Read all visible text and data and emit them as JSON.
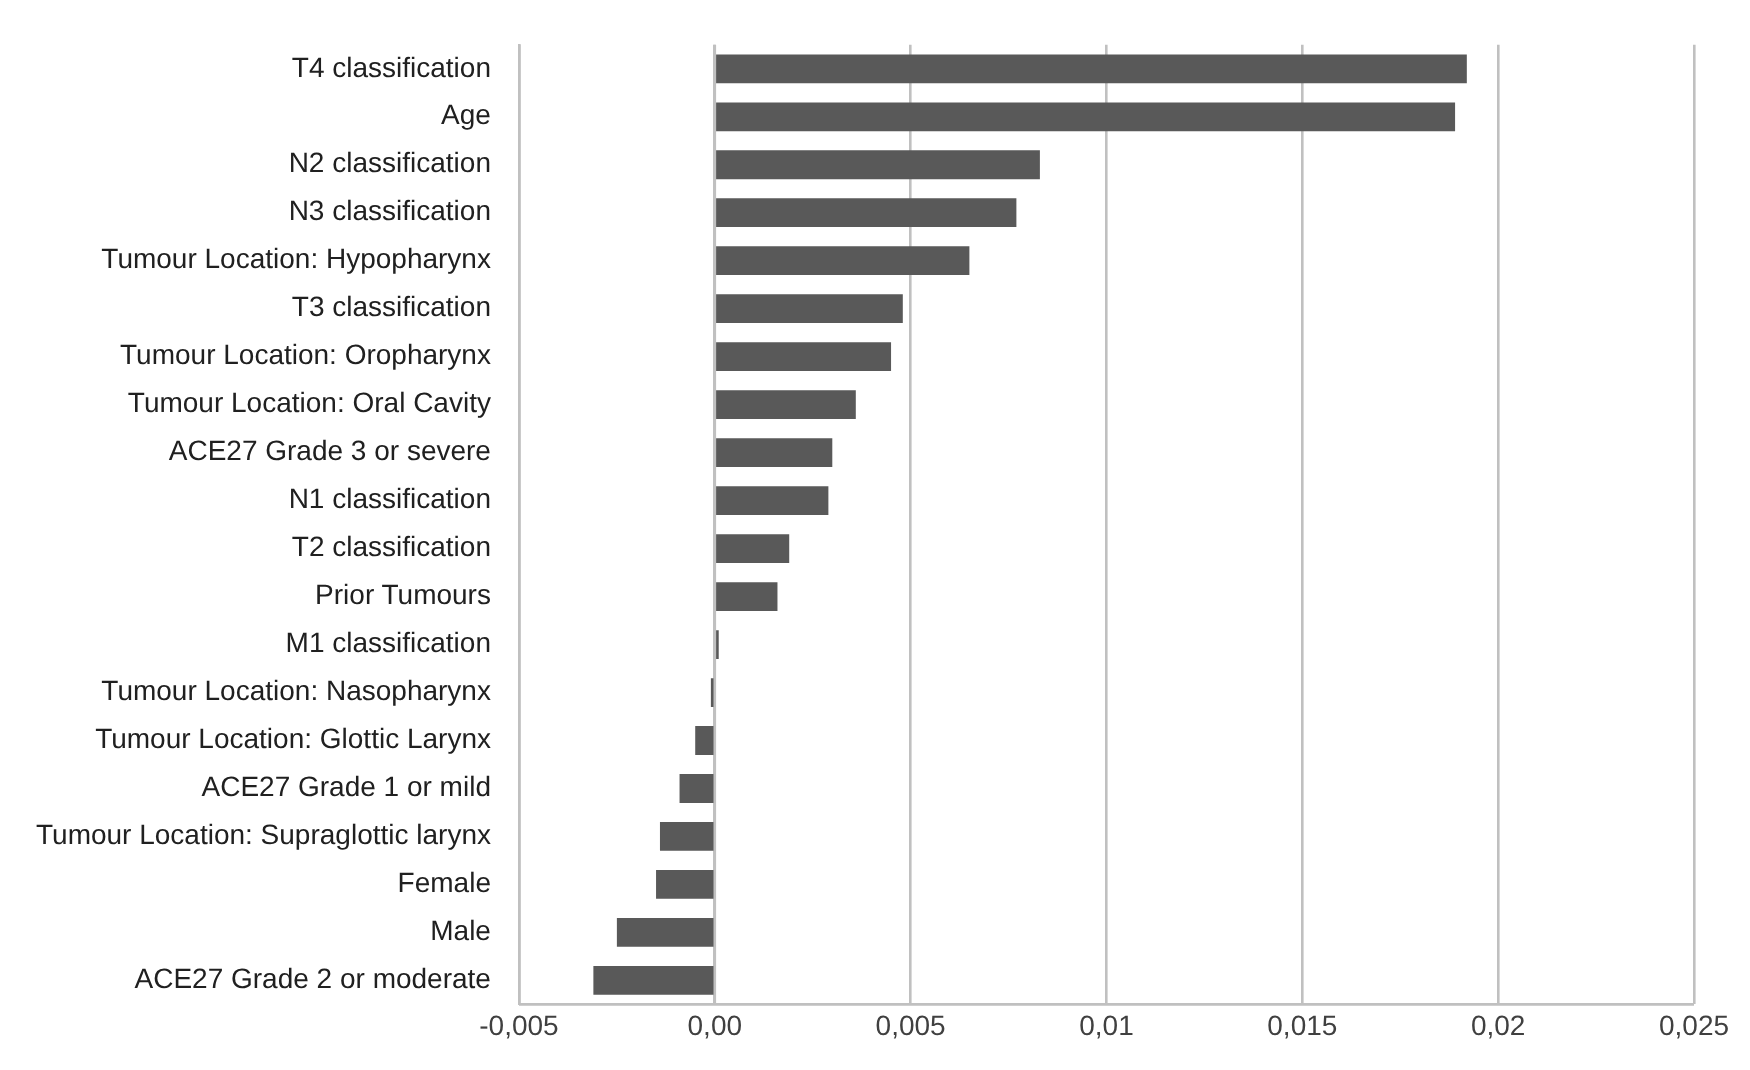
{
  "chart_data": {
    "type": "bar",
    "orientation": "horizontal",
    "categories": [
      "T4 classification",
      "Age",
      "N2 classification",
      "N3 classification",
      "Tumour Location: Hypopharynx",
      "T3 classification",
      "Tumour Location: Oropharynx",
      "Tumour Location: Oral Cavity",
      "ACE27 Grade 3 or severe",
      "N1 classification",
      "T2 classification",
      "Prior Tumours",
      "M1 classification",
      "Tumour Location: Nasopharynx",
      "Tumour Location: Glottic Larynx",
      "ACE27 Grade 1 or mild",
      "Tumour Location: Supraglottic larynx",
      "Female",
      "Male",
      "ACE27 Grade 2 or moderate"
    ],
    "values": [
      0.0192,
      0.0189,
      0.0083,
      0.0077,
      0.0065,
      0.0048,
      0.0045,
      0.0036,
      0.003,
      0.0029,
      0.0019,
      0.0016,
      0.0001,
      -0.0001,
      -0.0005,
      -0.0009,
      -0.0014,
      -0.0015,
      -0.0025,
      -0.0031
    ],
    "color": "#595959",
    "xlim": [
      -0.005,
      0.025
    ],
    "xticks": [
      {
        "value": -0.005,
        "label": "-0,005"
      },
      {
        "value": 0,
        "label": "0,00"
      },
      {
        "value": 0.005,
        "label": "0,005"
      },
      {
        "value": 0.01,
        "label": "0,01"
      },
      {
        "value": 0.015,
        "label": "0,015"
      },
      {
        "value": 0.02,
        "label": "0,02"
      },
      {
        "value": 0.025,
        "label": "0,025"
      }
    ],
    "grid": "x",
    "legend": false
  }
}
